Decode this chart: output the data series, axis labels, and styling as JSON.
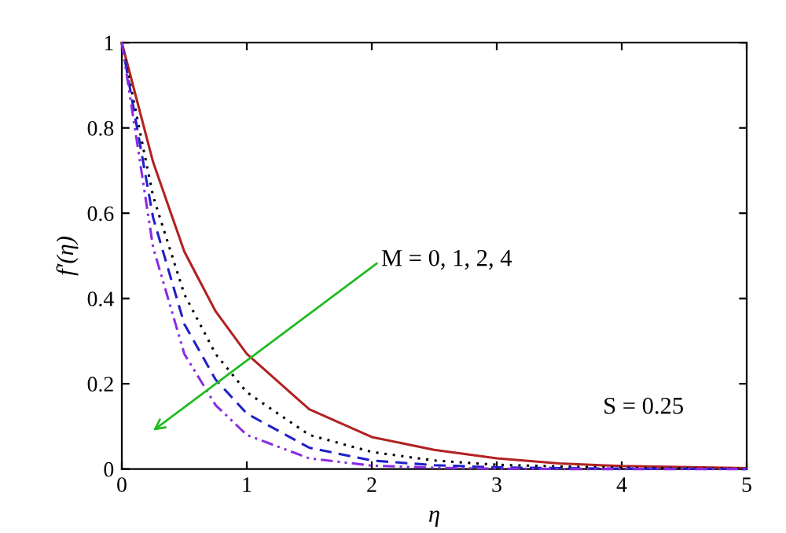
{
  "chart_data": {
    "type": "line",
    "xlabel": "η",
    "ylabel": "f′(η)",
    "xlim": [
      0,
      5
    ],
    "ylim": [
      0,
      1
    ],
    "xticks": [
      0,
      1,
      2,
      3,
      4,
      5
    ],
    "yticks": [
      0,
      0.2,
      0.4,
      0.6,
      0.8,
      1
    ],
    "grid": false,
    "legend": false,
    "marker": "none",
    "x": [
      0,
      0.25,
      0.5,
      0.75,
      1,
      1.5,
      2,
      2.5,
      3,
      3.5,
      4,
      5
    ],
    "series": [
      {
        "color": "#b22222",
        "line_style": "solid",
        "values": [
          1,
          0.72,
          0.51,
          0.37,
          0.27,
          0.14,
          0.075,
          0.045,
          0.025,
          0.013,
          0.007,
          0.002
        ]
      },
      {
        "color": "#000000",
        "line_style": "dotted",
        "values": [
          1,
          0.64,
          0.41,
          0.27,
          0.18,
          0.08,
          0.04,
          0.02,
          0.01,
          0.006,
          0.003,
          0.001
        ]
      },
      {
        "color": "#2020c8",
        "line_style": "dashed",
        "values": [
          1,
          0.59,
          0.34,
          0.21,
          0.13,
          0.05,
          0.02,
          0.009,
          0.004,
          0.002,
          0.001,
          0
        ]
      },
      {
        "color": "#8a2be2",
        "line_style": "dashdot",
        "values": [
          1,
          0.52,
          0.27,
          0.15,
          0.08,
          0.025,
          0.008,
          0.003,
          0.001,
          0,
          0,
          0
        ]
      }
    ],
    "annotations": [
      "M = 0, 1, 2, 4",
      "S = 0.25"
    ]
  }
}
